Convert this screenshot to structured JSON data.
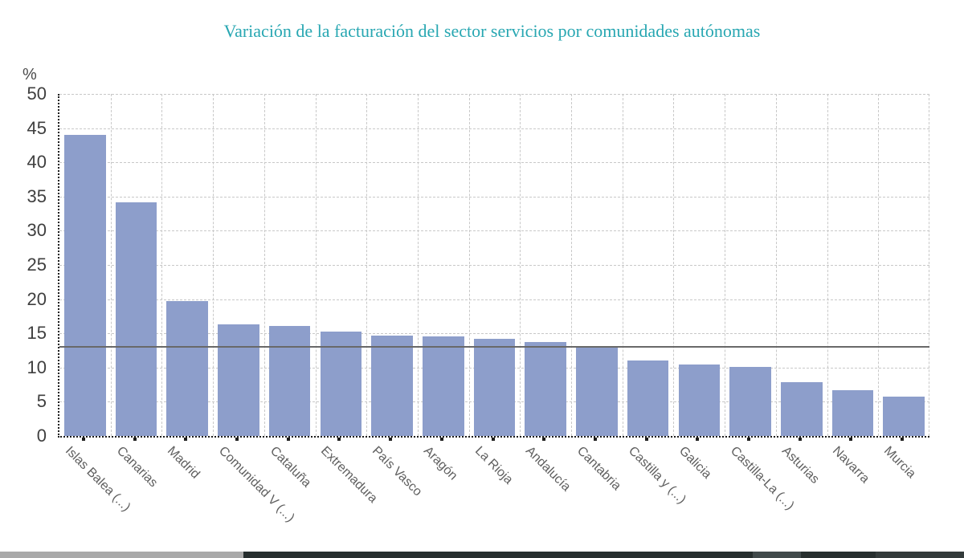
{
  "title": "Variación de la facturación del sector servicios por comunidades autónomas",
  "y_axis_unit": "%",
  "chart_data": {
    "type": "bar",
    "title": "Variación de la facturación del sector servicios por comunidades autónomas",
    "xlabel": "",
    "ylabel": "%",
    "ylim": [
      0,
      50
    ],
    "ytick_step": 5,
    "grid": true,
    "legend": "none",
    "categories": [
      "Islas Balea (...)",
      "Canarias",
      "Madrid",
      "Comunidad V (...)",
      "Cataluña",
      "Extremadura",
      "País Vasco",
      "Aragón",
      "La Rioja",
      "Andalucía",
      "Cantabria",
      "Castilla y (...)",
      "Galicia",
      "Castilla-La (...)",
      "Asturias",
      "Navarra",
      "Murcia"
    ],
    "values": [
      44.0,
      34.1,
      19.7,
      16.3,
      16.1,
      15.3,
      14.7,
      14.5,
      14.2,
      13.7,
      13.0,
      11.0,
      10.4,
      10.1,
      7.9,
      6.7,
      5.8
    ],
    "reference_line": {
      "value": 13.2,
      "label": ""
    },
    "bar_color": "#8d9ecb",
    "reference_line_color": "#696969",
    "gridline_color": "#c8c8c8",
    "axis_color": "#1c1c1c",
    "title_color": "#28a7b2",
    "tick_label_color": "#3f3f3f",
    "category_label_color": "#5f5f5f"
  },
  "scrollbar": {
    "left_color": "#a9a9a9",
    "track_color": "#262e2e",
    "thumb_color": "#414a4b",
    "right_color": "#333b3b"
  }
}
